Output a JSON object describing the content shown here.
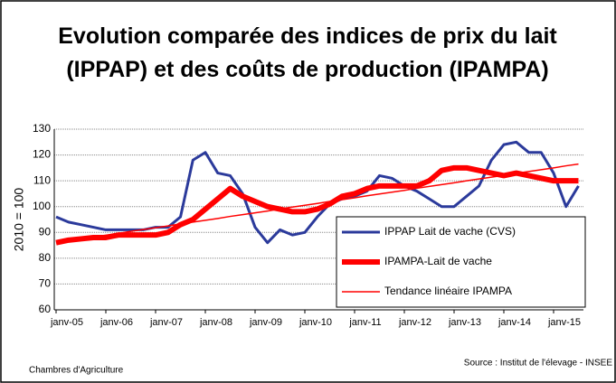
{
  "chart_data": {
    "type": "line",
    "title": "Evolution comparée des indices de prix du lait (IPPAP) et des coûts de production (IPAMPA)",
    "y_label": "2010 = 100",
    "source_left": "Chambres d'Agriculture",
    "source_right": "Source : Institut de l'élevage - INSEE",
    "categories": [
      "janv-05",
      null,
      null,
      null,
      "janv-06",
      null,
      null,
      null,
      "janv-07",
      null,
      null,
      null,
      "janv-08",
      null,
      null,
      null,
      "janv-09",
      null,
      null,
      null,
      "janv-10",
      null,
      null,
      null,
      "janv-11",
      null,
      null,
      null,
      "janv-12",
      null,
      null,
      null,
      "janv-13",
      null,
      null,
      null,
      "janv-14",
      null,
      null,
      null,
      "janv-15",
      null,
      null
    ],
    "ylim": [
      60,
      130
    ],
    "yticks": [
      60,
      70,
      80,
      90,
      100,
      110,
      120,
      130
    ],
    "grid": true,
    "series": [
      {
        "name": "IPPAP Lait de vache (CVS)",
        "color": "#2b3a9b",
        "width": 3,
        "values": [
          96,
          94,
          93,
          92,
          91,
          91,
          91,
          91,
          92,
          92,
          96,
          118,
          121,
          113,
          112,
          105,
          92,
          86,
          91,
          89,
          90,
          96,
          101,
          103,
          104,
          106,
          112,
          111,
          108,
          106,
          103,
          100,
          100,
          104,
          108,
          118,
          124,
          125,
          121,
          121,
          113,
          100,
          108
        ]
      },
      {
        "name": "IPAMPA-Lait de vache",
        "color": "#ff0000",
        "width": 6,
        "values": [
          86,
          87,
          87.5,
          88,
          88,
          89,
          89,
          89,
          89,
          90,
          93,
          95,
          99,
          103,
          107,
          104,
          102,
          100,
          99,
          98,
          98,
          99,
          101,
          104,
          105,
          107,
          108,
          108,
          108,
          108,
          110,
          114,
          115,
          115,
          114,
          113,
          112,
          113,
          112,
          111,
          110,
          110,
          110
        ]
      },
      {
        "name": "Tendance linéaire IPAMPA",
        "color": "#ff0000",
        "width": 1.5,
        "values": [
          86.0,
          86.7,
          87.5,
          88.2,
          88.9,
          89.6,
          90.4,
          91.1,
          91.8,
          92.5,
          93.3,
          94.0,
          94.7,
          95.4,
          96.2,
          96.9,
          97.6,
          98.3,
          99.1,
          99.8,
          100.5,
          101.2,
          102.0,
          102.7,
          103.4,
          104.2,
          104.9,
          105.6,
          106.3,
          107.1,
          107.8,
          108.5,
          109.2,
          110.0,
          110.7,
          111.4,
          112.1,
          112.9,
          113.6,
          114.3,
          115.0,
          115.8,
          116.5
        ]
      }
    ]
  }
}
